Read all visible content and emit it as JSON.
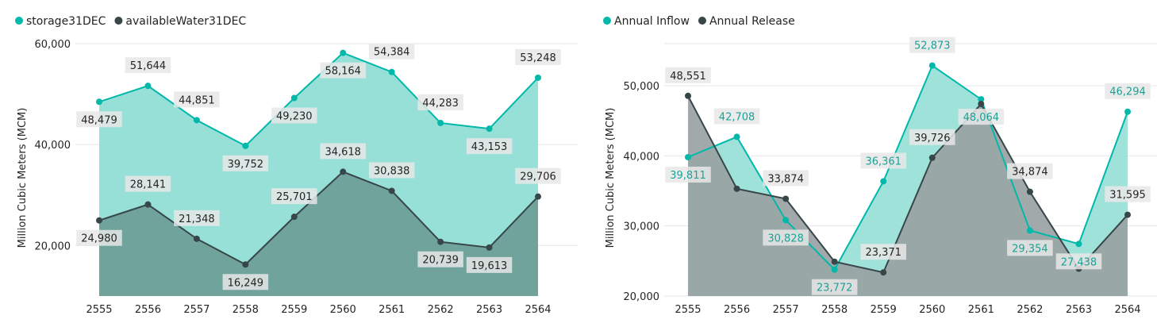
{
  "chart_data": [
    {
      "type": "area",
      "title": "",
      "xlabel": "",
      "ylabel": "Million Cubic Meters (MCM)",
      "ylim": [
        10000,
        60000
      ],
      "yticks": [
        20000,
        40000,
        60000
      ],
      "ytick_labels": [
        "20,000",
        "40,000",
        "60,000"
      ],
      "grid": true,
      "legend_position": "top-left",
      "categories": [
        "2555",
        "2556",
        "2557",
        "2558",
        "2559",
        "2560",
        "2561",
        "2562",
        "2563",
        "2564"
      ],
      "series": [
        {
          "name": "storage31DEC",
          "color": "#01B8AA",
          "fill": "#96E0D7",
          "values": [
            48479,
            51644,
            44851,
            39752,
            49230,
            58164,
            54384,
            44283,
            43153,
            53248
          ],
          "labels": [
            "48,479",
            "51,644",
            "44,851",
            "39,752",
            "49,230",
            "58,164",
            "54,384",
            "44,283",
            "43,153",
            "53,248"
          ],
          "label_pos": [
            "below",
            "above",
            "above",
            "below",
            "below",
            "below",
            "above",
            "above",
            "below",
            "above"
          ],
          "label_color": "#252423"
        },
        {
          "name": "availableWater31DEC",
          "color": "#374649",
          "fill": "#6FA39C",
          "values": [
            24980,
            28141,
            21348,
            16249,
            25701,
            34618,
            30838,
            20739,
            19613,
            29706
          ],
          "labels": [
            "24,980",
            "28,141",
            "21,348",
            "16,249",
            "25,701",
            "34,618",
            "30,838",
            "20,739",
            "19,613",
            "29,706"
          ],
          "label_pos": [
            "below",
            "above",
            "above",
            "below",
            "above",
            "above",
            "above",
            "below",
            "below",
            "above"
          ],
          "label_color": "#252423"
        }
      ]
    },
    {
      "type": "area",
      "title": "",
      "xlabel": "",
      "ylabel": "Million Cubic Meters (MCM)",
      "ylim": [
        20000,
        56000
      ],
      "yticks": [
        20000,
        30000,
        40000,
        50000
      ],
      "ytick_labels": [
        "20,000",
        "30,000",
        "40,000",
        "50,000"
      ],
      "grid": true,
      "legend_position": "top-left",
      "categories": [
        "2555",
        "2556",
        "2557",
        "2558",
        "2559",
        "2560",
        "2561",
        "2562",
        "2563",
        "2564"
      ],
      "series": [
        {
          "name": "Annual Inflow",
          "color": "#01B8AA",
          "fill": "#96E0D7",
          "values": [
            39811,
            42708,
            30828,
            23772,
            36361,
            52873,
            48064,
            29354,
            27438,
            46294
          ],
          "labels": [
            "39,811",
            "42,708",
            "30,828",
            "23,772",
            "36,361",
            "52,873",
            "48,064",
            "29,354",
            "27,438",
            "46,294"
          ],
          "label_pos": [
            "below",
            "above",
            "below",
            "below",
            "above",
            "above",
            "below",
            "below",
            "below",
            "above"
          ],
          "label_color": "#1AA297"
        },
        {
          "name": "Annual Release",
          "color": "#374649",
          "fill": "#9AA2A3",
          "values": [
            48551,
            35300,
            33874,
            24900,
            23371,
            39726,
            47400,
            34874,
            23900,
            31595
          ],
          "labels": [
            "48,551",
            "",
            "33,874",
            "",
            "23,371",
            "39,726",
            "",
            "34,874",
            "",
            "31,595"
          ],
          "label_pos": [
            "above",
            "none",
            "above",
            "none",
            "above",
            "above",
            "none",
            "above",
            "none",
            "above"
          ],
          "label_color": "#252423"
        }
      ]
    }
  ]
}
